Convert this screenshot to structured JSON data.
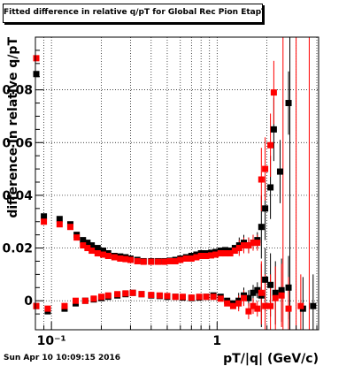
{
  "chart_data": {
    "type": "scatter",
    "title": "Fitted difference in relative q/pT for Global Rec Pion EtapT",
    "xlabel": "pT/|q| (GeV/c)",
    "ylabel": "difference in relative q/pT",
    "xscale": "log",
    "xlim": [
      0.08,
      4.1
    ],
    "ylim": [
      -0.011,
      0.1
    ],
    "x_tick_labels": [
      {
        "value": 0.1,
        "label": "10⁻¹"
      },
      {
        "value": 1,
        "label": "1"
      }
    ],
    "y_tick_labels": [
      {
        "value": 0,
        "label": "0"
      },
      {
        "value": 0.02,
        "label": "0.02"
      },
      {
        "value": 0.04,
        "label": "0.04"
      },
      {
        "value": 0.06,
        "label": "0.06"
      },
      {
        "value": 0.08,
        "label": "0.08"
      }
    ],
    "grid": true,
    "series": [
      {
        "color": "#000000",
        "points": [
          [
            0.081,
            0.086
          ],
          [
            0.09,
            0.032
          ],
          [
            0.112,
            0.031
          ],
          [
            0.13,
            0.029
          ],
          [
            0.142,
            0.025
          ],
          [
            0.155,
            0.023
          ],
          [
            0.165,
            0.022
          ],
          [
            0.175,
            0.021
          ],
          [
            0.19,
            0.02
          ],
          [
            0.205,
            0.019
          ],
          [
            0.22,
            0.018
          ],
          [
            0.24,
            0.017
          ],
          [
            0.26,
            0.0168
          ],
          [
            0.28,
            0.0165
          ],
          [
            0.3,
            0.016
          ],
          [
            0.33,
            0.0155
          ],
          [
            0.36,
            0.015
          ],
          [
            0.4,
            0.015
          ],
          [
            0.44,
            0.015
          ],
          [
            0.48,
            0.015
          ],
          [
            0.52,
            0.0152
          ],
          [
            0.56,
            0.0155
          ],
          [
            0.6,
            0.016
          ],
          [
            0.65,
            0.0165
          ],
          [
            0.7,
            0.017
          ],
          [
            0.75,
            0.0175
          ],
          [
            0.8,
            0.018
          ],
          [
            0.86,
            0.018
          ],
          [
            0.92,
            0.0182
          ],
          [
            0.98,
            0.0185
          ],
          [
            1.05,
            0.019
          ],
          [
            1.12,
            0.0192
          ],
          [
            1.2,
            0.019
          ],
          [
            1.28,
            0.02
          ],
          [
            1.36,
            0.021
          ],
          [
            1.45,
            0.022
          ],
          [
            1.55,
            0.021
          ],
          [
            1.65,
            0.022
          ],
          [
            1.75,
            0.023
          ],
          [
            1.85,
            0.028
          ],
          [
            1.95,
            0.035
          ],
          [
            2.1,
            0.043
          ],
          [
            2.2,
            0.065
          ],
          [
            2.4,
            0.049
          ],
          [
            2.7,
            0.075
          ],
          [
            0.081,
            -0.002
          ],
          [
            0.095,
            -0.004
          ],
          [
            0.12,
            -0.003
          ],
          [
            0.14,
            -0.001
          ],
          [
            0.16,
            0.0
          ],
          [
            0.18,
            0.0005
          ],
          [
            0.2,
            0.001
          ],
          [
            0.22,
            0.0015
          ],
          [
            0.25,
            0.002
          ],
          [
            0.28,
            0.0025
          ],
          [
            0.31,
            0.003
          ],
          [
            0.35,
            0.0025
          ],
          [
            0.4,
            0.002
          ],
          [
            0.45,
            0.0018
          ],
          [
            0.5,
            0.0015
          ],
          [
            0.56,
            0.0015
          ],
          [
            0.62,
            0.0012
          ],
          [
            0.7,
            0.001
          ],
          [
            0.78,
            0.0012
          ],
          [
            0.86,
            0.0015
          ],
          [
            0.95,
            0.002
          ],
          [
            1.05,
            0.0015
          ],
          [
            1.15,
            0.0
          ],
          [
            1.25,
            -0.001
          ],
          [
            1.35,
            0.0
          ],
          [
            1.45,
            0.002
          ],
          [
            1.55,
            0.001
          ],
          [
            1.65,
            0.003
          ],
          [
            1.75,
            0.004
          ],
          [
            1.85,
            0.002
          ],
          [
            1.95,
            0.008
          ],
          [
            2.1,
            0.006
          ],
          [
            2.25,
            0.003
          ],
          [
            2.45,
            0.004
          ],
          [
            2.7,
            0.005
          ],
          [
            3.3,
            -0.003
          ],
          [
            3.8,
            -0.002
          ]
        ]
      },
      {
        "color": "#ff0000",
        "points": [
          [
            0.081,
            0.092
          ],
          [
            0.09,
            0.03
          ],
          [
            0.112,
            0.029
          ],
          [
            0.13,
            0.028
          ],
          [
            0.142,
            0.024
          ],
          [
            0.155,
            0.021
          ],
          [
            0.165,
            0.02
          ],
          [
            0.175,
            0.019
          ],
          [
            0.19,
            0.018
          ],
          [
            0.205,
            0.0175
          ],
          [
            0.22,
            0.017
          ],
          [
            0.24,
            0.0165
          ],
          [
            0.26,
            0.016
          ],
          [
            0.28,
            0.0158
          ],
          [
            0.3,
            0.0155
          ],
          [
            0.33,
            0.015
          ],
          [
            0.36,
            0.0148
          ],
          [
            0.4,
            0.0148
          ],
          [
            0.44,
            0.0148
          ],
          [
            0.48,
            0.0148
          ],
          [
            0.52,
            0.015
          ],
          [
            0.56,
            0.015
          ],
          [
            0.6,
            0.0155
          ],
          [
            0.65,
            0.016
          ],
          [
            0.7,
            0.016
          ],
          [
            0.75,
            0.0165
          ],
          [
            0.8,
            0.017
          ],
          [
            0.86,
            0.017
          ],
          [
            0.92,
            0.0172
          ],
          [
            0.98,
            0.0175
          ],
          [
            1.05,
            0.018
          ],
          [
            1.12,
            0.018
          ],
          [
            1.2,
            0.018
          ],
          [
            1.28,
            0.019
          ],
          [
            1.36,
            0.02
          ],
          [
            1.45,
            0.021
          ],
          [
            1.55,
            0.021
          ],
          [
            1.65,
            0.022
          ],
          [
            1.75,
            0.022
          ],
          [
            1.85,
            0.046
          ],
          [
            1.95,
            0.05
          ],
          [
            2.1,
            0.059
          ],
          [
            2.2,
            0.079
          ],
          [
            0.081,
            -0.002
          ],
          [
            0.095,
            -0.003
          ],
          [
            0.12,
            -0.002
          ],
          [
            0.14,
            0.0
          ],
          [
            0.16,
            0.0
          ],
          [
            0.18,
            0.0008
          ],
          [
            0.2,
            0.0015
          ],
          [
            0.22,
            0.002
          ],
          [
            0.25,
            0.0025
          ],
          [
            0.28,
            0.0028
          ],
          [
            0.31,
            0.003
          ],
          [
            0.35,
            0.0025
          ],
          [
            0.4,
            0.0022
          ],
          [
            0.45,
            0.002
          ],
          [
            0.5,
            0.0018
          ],
          [
            0.56,
            0.0015
          ],
          [
            0.62,
            0.0015
          ],
          [
            0.7,
            0.0012
          ],
          [
            0.78,
            0.0015
          ],
          [
            0.86,
            0.0015
          ],
          [
            0.95,
            0.0015
          ],
          [
            1.05,
            0.0008
          ],
          [
            1.15,
            -0.001
          ],
          [
            1.25,
            -0.002
          ],
          [
            1.35,
            -0.001
          ],
          [
            1.45,
            0.001
          ],
          [
            1.55,
            -0.004
          ],
          [
            1.65,
            -0.002
          ],
          [
            1.75,
            -0.003
          ],
          [
            1.85,
            0.003
          ],
          [
            1.95,
            -0.002
          ],
          [
            2.1,
            -0.002
          ],
          [
            2.25,
            0.001
          ],
          [
            2.45,
            0.002
          ],
          [
            2.7,
            -0.003
          ],
          [
            3.2,
            -0.002
          ]
        ]
      }
    ]
  },
  "footer": {
    "timestamp": "Sun Apr 10 10:09:15 2016"
  }
}
